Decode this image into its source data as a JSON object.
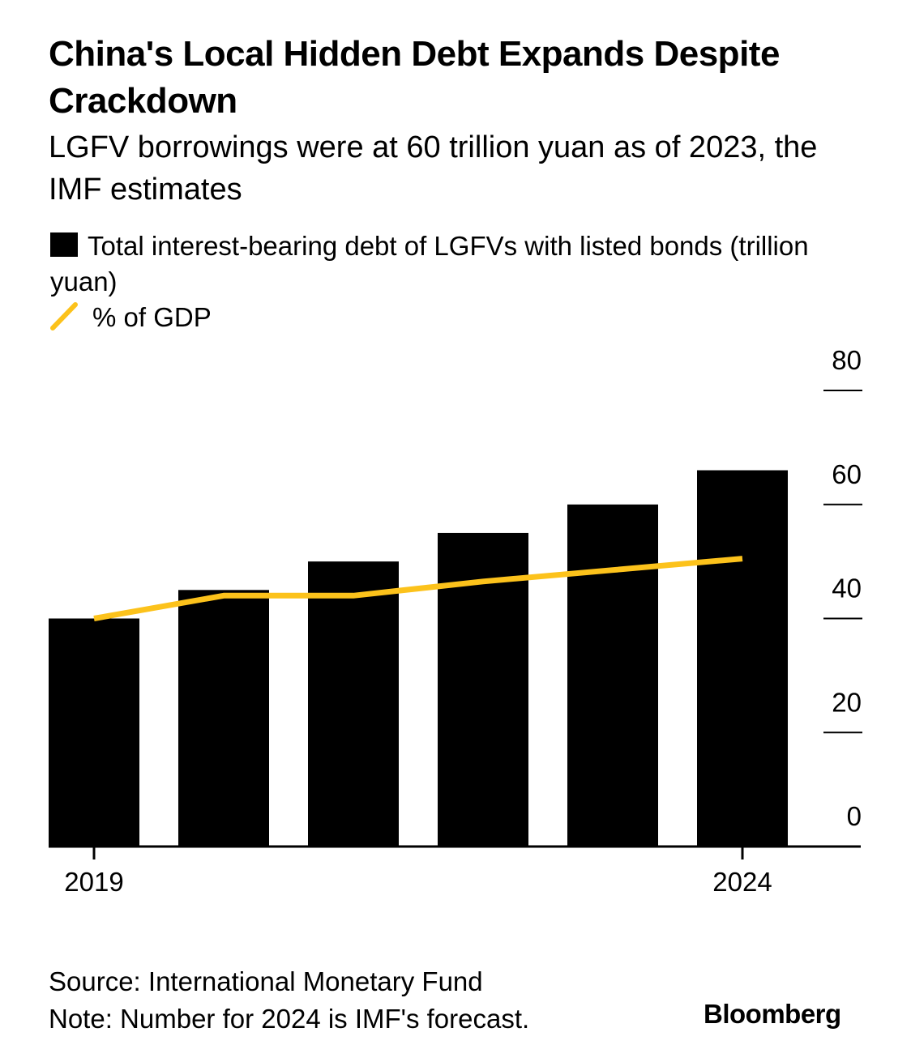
{
  "title": "China's Local Hidden Debt Expands Despite Crackdown",
  "subtitle": "LGFV borrowings were at 60 trillion yuan as of 2023, the IMF estimates",
  "legend": {
    "bar_label": "Total interest-bearing debt of LGFVs with listed bonds (trillion yuan)",
    "line_label": "% of GDP"
  },
  "colors": {
    "bar": "#000000",
    "line": "#fcc21b"
  },
  "chart_data": {
    "type": "bar",
    "categories": [
      "2019",
      "2020",
      "2021",
      "2022",
      "2023",
      "2024"
    ],
    "x_tick_labels": [
      "2019",
      "2024"
    ],
    "series": [
      {
        "name": "Total interest-bearing debt of LGFVs with listed bonds (trillion yuan)",
        "type": "bar",
        "values": [
          40,
          45,
          50,
          55,
          60,
          66
        ]
      },
      {
        "name": "% of GDP",
        "type": "line",
        "values": [
          40,
          44,
          44,
          46.5,
          48.5,
          50.5
        ]
      }
    ],
    "yticks": [
      0,
      20,
      40,
      60,
      80
    ],
    "ylim": [
      0,
      80
    ],
    "y_axis_position": "right",
    "grid": false
  },
  "footer": {
    "source": "Source: International Monetary Fund",
    "note": "Note: Number for 2024 is IMF's forecast.",
    "logo": "Bloomberg"
  }
}
